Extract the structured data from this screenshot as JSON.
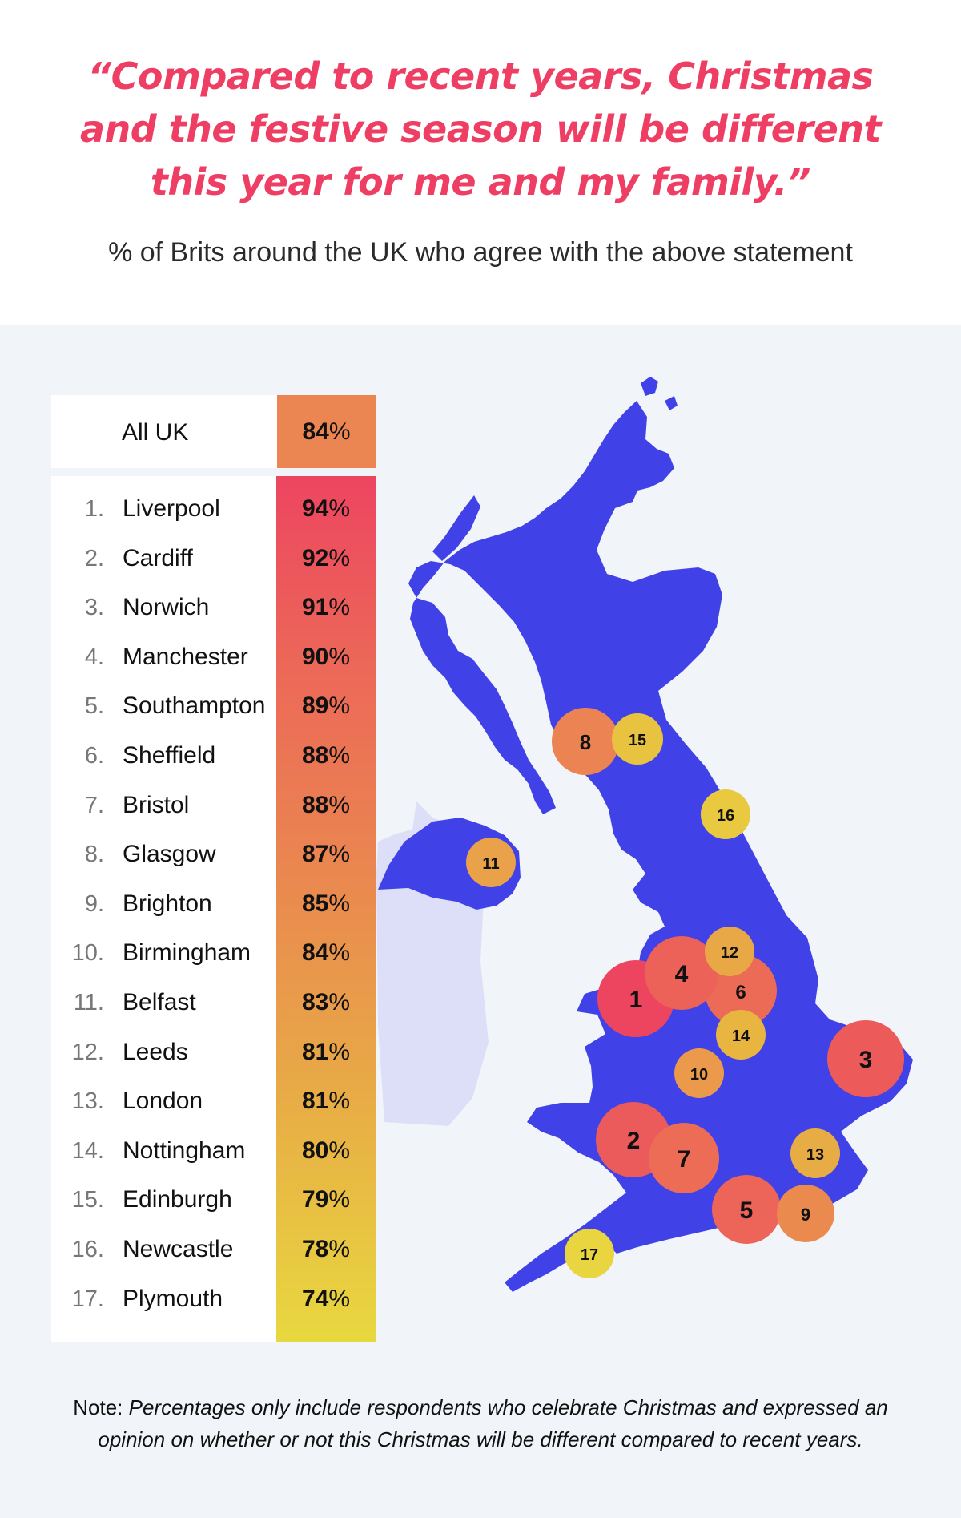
{
  "headline": {
    "line1": "“Compared to recent years, Christmas",
    "line2": "and the festive season will be different",
    "line3": "this year for me and my family.”"
  },
  "subtitle": "% of Brits around the UK who agree with the above statement",
  "all_uk": {
    "label": "All UK",
    "value": "84",
    "unit": "%"
  },
  "rankings": [
    {
      "rank": "1.",
      "city": "Liverpool",
      "value": "94",
      "unit": "%"
    },
    {
      "rank": "2.",
      "city": "Cardiff",
      "value": "92",
      "unit": "%"
    },
    {
      "rank": "3.",
      "city": "Norwich",
      "value": "91",
      "unit": "%"
    },
    {
      "rank": "4.",
      "city": "Manchester",
      "value": "90",
      "unit": "%"
    },
    {
      "rank": "5.",
      "city": "Southampton",
      "value": "89",
      "unit": "%"
    },
    {
      "rank": "6.",
      "city": "Sheffield",
      "value": "88",
      "unit": "%"
    },
    {
      "rank": "7.",
      "city": "Bristol",
      "value": "88",
      "unit": "%"
    },
    {
      "rank": "8.",
      "city": "Glasgow",
      "value": "87",
      "unit": "%"
    },
    {
      "rank": "9.",
      "city": "Brighton",
      "value": "85",
      "unit": "%"
    },
    {
      "rank": "10.",
      "city": "Birmingham",
      "value": "84",
      "unit": "%"
    },
    {
      "rank": "11.",
      "city": "Belfast",
      "value": "83",
      "unit": "%"
    },
    {
      "rank": "12.",
      "city": "Leeds",
      "value": "81",
      "unit": "%"
    },
    {
      "rank": "13.",
      "city": "London",
      "value": "81",
      "unit": "%"
    },
    {
      "rank": "14.",
      "city": "Nottingham",
      "value": "80",
      "unit": "%"
    },
    {
      "rank": "15.",
      "city": "Edinburgh",
      "value": "79",
      "unit": "%"
    },
    {
      "rank": "16.",
      "city": "Newcastle",
      "value": "78",
      "unit": "%"
    },
    {
      "rank": "17.",
      "city": "Plymouth",
      "value": "74",
      "unit": "%"
    }
  ],
  "map_markers": [
    "1",
    "2",
    "3",
    "4",
    "5",
    "6",
    "7",
    "8",
    "9",
    "10",
    "11",
    "12",
    "13",
    "14",
    "15",
    "16",
    "17"
  ],
  "colors": {
    "headline": "#ee3e64",
    "map_land": "#4042e8",
    "ireland_land": "#dddff8",
    "panel_bg": "#f1f5fa",
    "bar_top": "#ed4560",
    "bar_bottom": "#e8d83f",
    "all_uk_bar": "#eb8652"
  },
  "note": {
    "prefix": "Note:",
    "line1": "Percentages only include respondents who celebrate Christmas and expressed an",
    "line2": "opinion on whether or not this Christmas will be different compared to recent years."
  }
}
